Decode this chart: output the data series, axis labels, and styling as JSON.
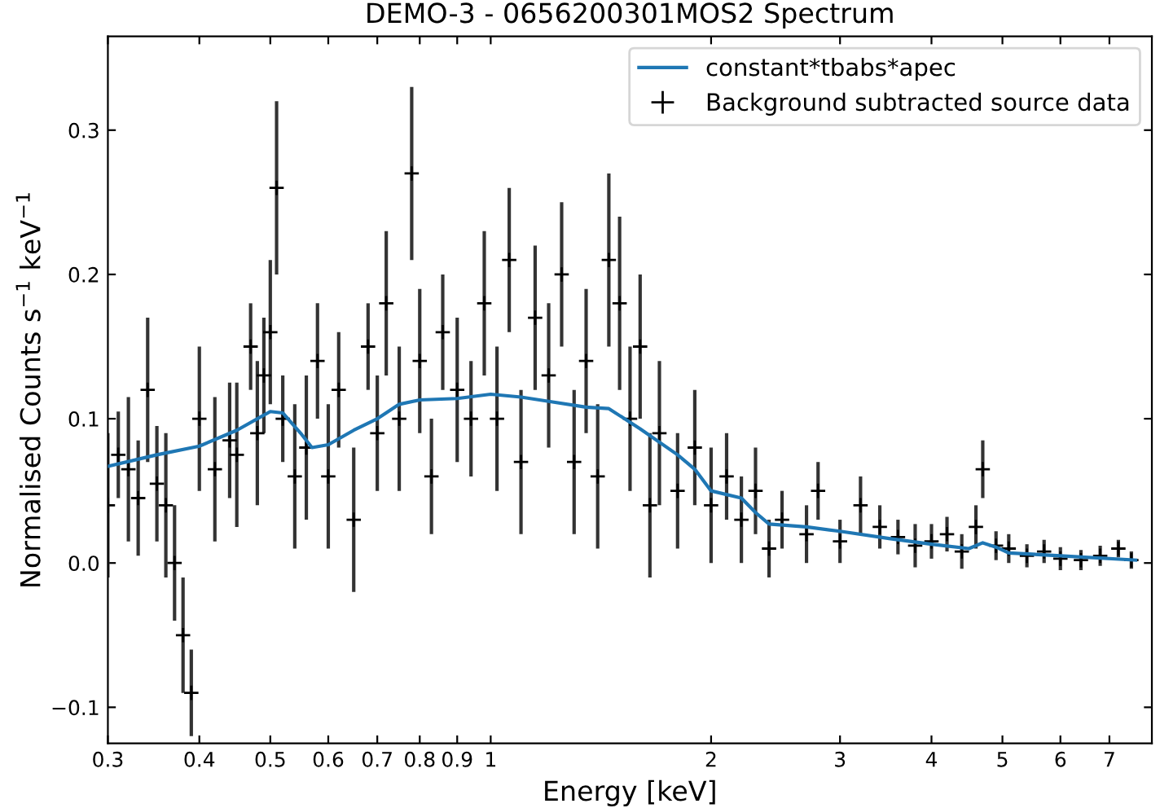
{
  "chart_data": {
    "type": "scatter",
    "title": "DEMO-3 - 0656200301MOS2 Spectrum",
    "xlabel": "Energy [keV]",
    "ylabel": "Normalised Counts s$^{−1}$ keV$^{−1}$",
    "log": "x",
    "xlim": [
      0.3,
      8.0
    ],
    "ylim": [
      -0.125,
      0.365
    ],
    "xticks": [
      0.3,
      0.4,
      0.5,
      0.6,
      0.7,
      0.8,
      0.9,
      1,
      2,
      3,
      4,
      5,
      6,
      7
    ],
    "yticks": [
      {
        "value": -0.1,
        "label": "−0.1"
      },
      {
        "value": 0,
        "label": "0.0"
      },
      {
        "value": 0.1,
        "label": "0.1"
      },
      {
        "value": 0.2,
        "label": "0.2"
      },
      {
        "value": 0.3,
        "label": "0.3"
      }
    ],
    "grid": false,
    "legend": "top right",
    "series": [
      {
        "name": "constant*tbabs*apec",
        "type": "line",
        "color": "#1f77b4",
        "line_style": "solid",
        "marker": "none",
        "x": [
          0.3,
          0.35,
          0.4,
          0.45,
          0.5,
          0.52,
          0.55,
          0.57,
          0.6,
          0.65,
          0.7,
          0.75,
          0.8,
          0.9,
          1.0,
          1.1,
          1.2,
          1.35,
          1.45,
          1.6,
          1.8,
          1.9,
          2.0,
          2.2,
          2.3,
          2.4,
          2.7,
          3.0,
          3.5,
          4.0,
          4.5,
          4.7,
          4.9,
          5.1,
          6.0,
          7.6
        ],
        "values": [
          0.067,
          0.075,
          0.081,
          0.092,
          0.105,
          0.104,
          0.09,
          0.08,
          0.082,
          0.092,
          0.1,
          0.11,
          0.113,
          0.114,
          0.117,
          0.115,
          0.112,
          0.108,
          0.107,
          0.093,
          0.075,
          0.065,
          0.05,
          0.045,
          0.035,
          0.027,
          0.025,
          0.022,
          0.017,
          0.013,
          0.01,
          0.014,
          0.011,
          0.007,
          0.005,
          0.002
        ]
      },
      {
        "name": "Background subtracted source data",
        "color": "#000000",
        "marker": "cross",
        "x": [
          0.3,
          0.31,
          0.32,
          0.33,
          0.34,
          0.35,
          0.36,
          0.37,
          0.38,
          0.39,
          0.4,
          0.42,
          0.44,
          0.45,
          0.47,
          0.48,
          0.49,
          0.5,
          0.51,
          0.52,
          0.54,
          0.56,
          0.58,
          0.6,
          0.62,
          0.65,
          0.68,
          0.7,
          0.72,
          0.75,
          0.78,
          0.8,
          0.83,
          0.86,
          0.9,
          0.94,
          0.98,
          1.02,
          1.06,
          1.1,
          1.15,
          1.2,
          1.25,
          1.3,
          1.35,
          1.4,
          1.45,
          1.5,
          1.55,
          1.6,
          1.65,
          1.7,
          1.8,
          1.9,
          2.0,
          2.1,
          2.2,
          2.3,
          2.4,
          2.5,
          2.7,
          2.8,
          3.0,
          3.2,
          3.4,
          3.6,
          3.8,
          4.0,
          4.2,
          4.4,
          4.6,
          4.7,
          4.9,
          5.1,
          5.4,
          5.7,
          6.0,
          6.4,
          6.8,
          7.2,
          7.5
        ],
        "values": [
          0.04,
          0.075,
          0.065,
          0.045,
          0.12,
          0.055,
          0.04,
          0.0,
          -0.05,
          -0.09,
          0.1,
          0.065,
          0.085,
          0.075,
          0.15,
          0.09,
          0.13,
          0.16,
          0.26,
          0.1,
          0.06,
          0.08,
          0.14,
          0.06,
          0.12,
          0.03,
          0.15,
          0.09,
          0.18,
          0.1,
          0.27,
          0.14,
          0.06,
          0.16,
          0.12,
          0.1,
          0.18,
          0.1,
          0.21,
          0.07,
          0.17,
          0.13,
          0.2,
          0.07,
          0.14,
          0.06,
          0.21,
          0.18,
          0.1,
          0.15,
          0.04,
          0.09,
          0.05,
          0.08,
          0.04,
          0.06,
          0.03,
          0.05,
          0.01,
          0.03,
          0.02,
          0.05,
          0.015,
          0.04,
          0.025,
          0.018,
          0.012,
          0.015,
          0.02,
          0.008,
          0.025,
          0.065,
          0.012,
          0.01,
          0.005,
          0.008,
          0.003,
          0.002,
          0.005,
          0.01,
          0.002
        ],
        "errors": [
          0.05,
          0.03,
          0.05,
          0.04,
          0.05,
          0.04,
          0.05,
          0.04,
          0.04,
          0.03,
          0.05,
          0.05,
          0.04,
          0.05,
          0.03,
          0.05,
          0.04,
          0.05,
          0.06,
          0.03,
          0.05,
          0.05,
          0.04,
          0.05,
          0.04,
          0.05,
          0.03,
          0.04,
          0.05,
          0.05,
          0.06,
          0.05,
          0.04,
          0.04,
          0.05,
          0.04,
          0.05,
          0.05,
          0.05,
          0.05,
          0.05,
          0.05,
          0.05,
          0.05,
          0.05,
          0.05,
          0.06,
          0.06,
          0.05,
          0.05,
          0.05,
          0.05,
          0.04,
          0.04,
          0.04,
          0.03,
          0.03,
          0.03,
          0.02,
          0.02,
          0.02,
          0.02,
          0.015,
          0.02,
          0.015,
          0.012,
          0.015,
          0.012,
          0.012,
          0.012,
          0.015,
          0.02,
          0.01,
          0.01,
          0.008,
          0.008,
          0.008,
          0.007,
          0.007,
          0.006,
          0.006
        ]
      }
    ]
  }
}
